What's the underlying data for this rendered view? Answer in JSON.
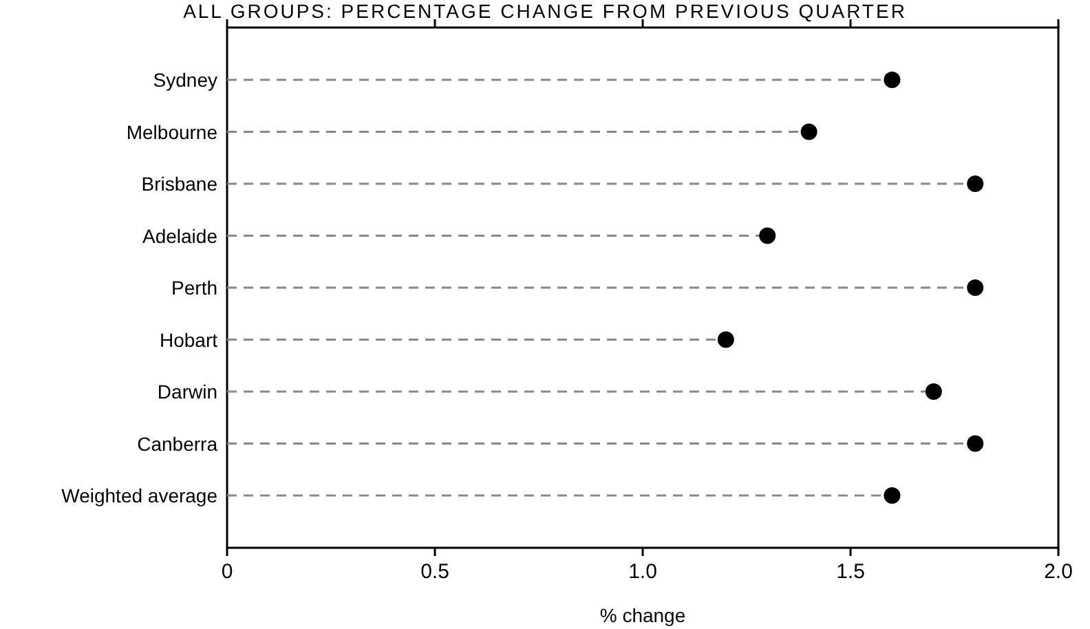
{
  "chart_data": {
    "type": "lollipop",
    "title": "ALL GROUPS: PERCENTAGE CHANGE FROM PREVIOUS QUARTER",
    "xlabel": "% change",
    "orientation": "horizontal",
    "categories": [
      "Sydney",
      "Melbourne",
      "Brisbane",
      "Adelaide",
      "Perth",
      "Hobart",
      "Darwin",
      "Canberra",
      "Weighted average"
    ],
    "values": [
      1.6,
      1.4,
      1.8,
      1.3,
      1.8,
      1.2,
      1.7,
      1.8,
      1.6
    ],
    "color": "#000000",
    "xlim": [
      0,
      2
    ],
    "xticks": [
      0,
      0.5,
      {
        "value": 1,
        "label": "1.0"
      },
      1.5,
      {
        "value": 2,
        "label": "2.0"
      }
    ],
    "line_style": "dashed",
    "marker": "circle"
  }
}
